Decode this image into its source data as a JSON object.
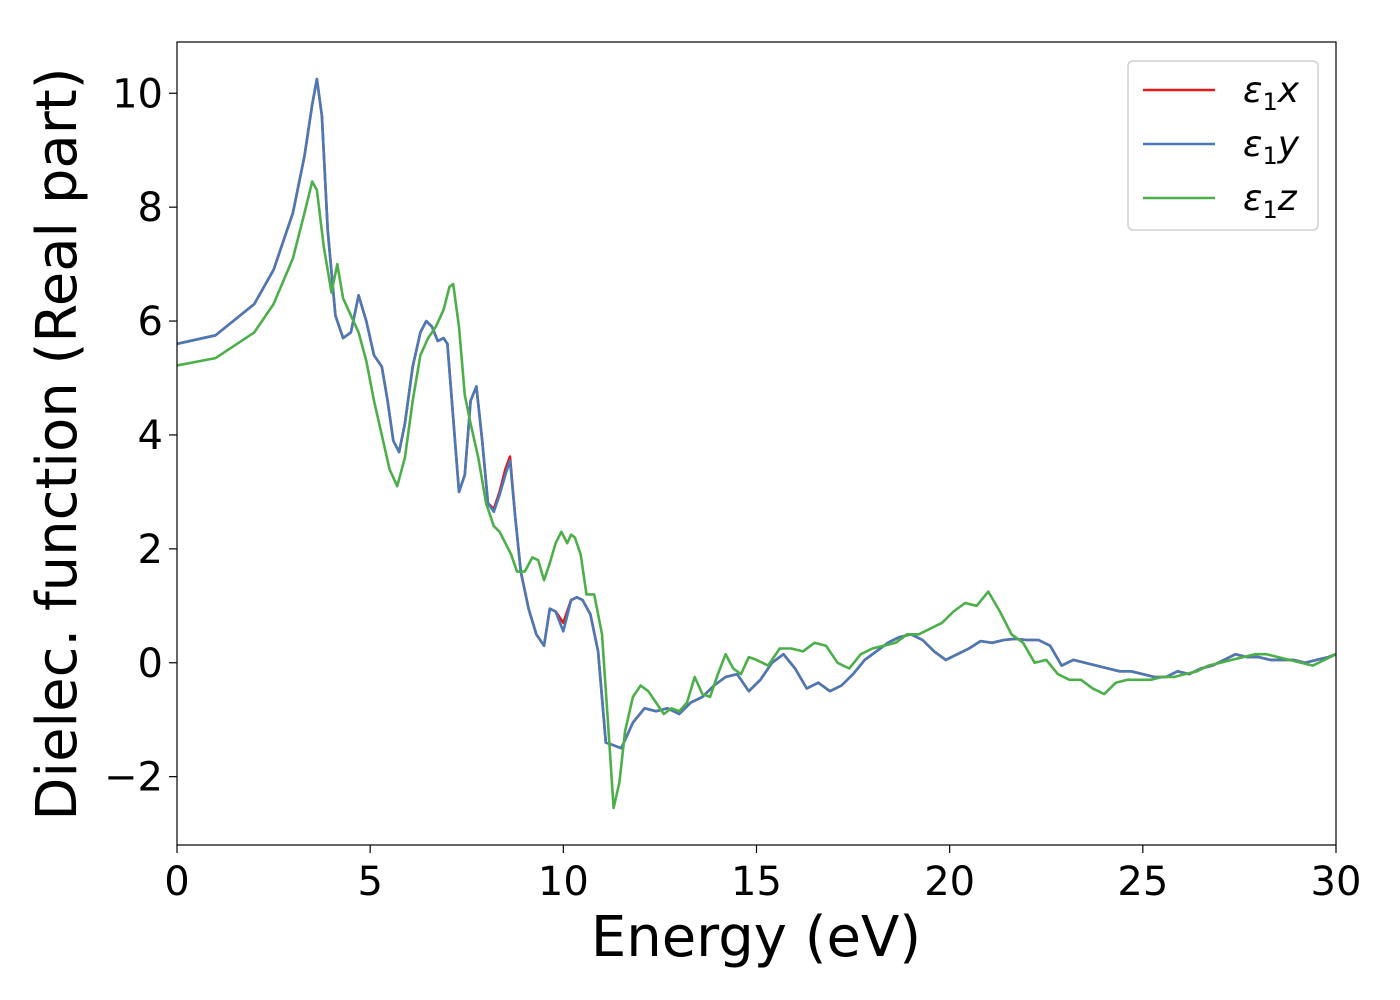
{
  "chart_data": {
    "type": "line",
    "xlabel": "Energy (eV)",
    "ylabel": "Dielec. function (Real part)",
    "xlim": [
      0,
      30
    ],
    "ylim": [
      -3.2,
      10.9
    ],
    "xticks": [
      0,
      5,
      10,
      15,
      20,
      25,
      30
    ],
    "yticks": [
      -2,
      0,
      2,
      4,
      6,
      8,
      10
    ],
    "ytick_labels": [
      "−2",
      "0",
      "2",
      "4",
      "6",
      "8",
      "10"
    ],
    "grid": false,
    "legend_position": "top-right",
    "series": [
      {
        "name": "ε1x",
        "symbol": "ε",
        "subscript": "1",
        "suffix": "x",
        "color": "#e41a1c",
        "x": [
          0,
          1,
          2,
          2.5,
          3,
          3.3,
          3.5,
          3.62,
          3.75,
          3.9,
          4.1,
          4.3,
          4.5,
          4.7,
          4.9,
          5.1,
          5.3,
          5.45,
          5.6,
          5.75,
          5.9,
          6.1,
          6.3,
          6.45,
          6.6,
          6.75,
          6.9,
          7.0,
          7.15,
          7.3,
          7.45,
          7.6,
          7.75,
          7.9,
          8.05,
          8.2,
          8.35,
          8.5,
          8.62,
          8.75,
          8.9,
          9.1,
          9.3,
          9.5,
          9.65,
          9.8,
          10.0,
          10.2,
          10.35,
          10.5,
          10.7,
          10.9,
          11.1,
          11.3,
          11.5,
          11.8,
          12.1,
          12.4,
          12.7,
          13.0,
          13.3,
          13.6,
          13.9,
          14.2,
          14.5,
          14.8,
          15.1,
          15.4,
          15.7,
          16.0,
          16.3,
          16.6,
          16.9,
          17.2,
          17.5,
          17.8,
          18.1,
          18.4,
          18.7,
          19.0,
          19.3,
          19.6,
          19.9,
          20.2,
          20.5,
          20.8,
          21.1,
          21.4,
          21.7,
          22.0,
          22.3,
          22.6,
          22.9,
          23.2,
          23.5,
          23.8,
          24.1,
          24.4,
          24.7,
          25.0,
          25.3,
          25.6,
          25.9,
          26.2,
          26.5,
          26.8,
          27.1,
          27.4,
          27.7,
          28.0,
          28.3,
          28.6,
          28.9,
          29.2,
          29.5,
          29.8,
          30.0
        ],
        "y": [
          5.6,
          5.75,
          6.3,
          6.9,
          7.9,
          8.9,
          9.8,
          10.25,
          9.6,
          7.6,
          6.1,
          5.7,
          5.8,
          6.45,
          6.0,
          5.4,
          5.2,
          4.6,
          3.9,
          3.7,
          4.2,
          5.2,
          5.8,
          6.0,
          5.9,
          5.65,
          5.7,
          5.6,
          4.3,
          3.0,
          3.3,
          4.6,
          4.85,
          3.9,
          2.8,
          2.7,
          3.0,
          3.4,
          3.62,
          2.6,
          1.6,
          0.95,
          0.5,
          0.3,
          0.95,
          0.9,
          0.7,
          1.1,
          1.15,
          1.1,
          0.85,
          0.2,
          -1.4,
          -1.45,
          -1.5,
          -1.05,
          -0.8,
          -0.85,
          -0.8,
          -0.9,
          -0.7,
          -0.6,
          -0.4,
          -0.25,
          -0.2,
          -0.5,
          -0.3,
          0.0,
          0.15,
          -0.1,
          -0.45,
          -0.35,
          -0.5,
          -0.4,
          -0.2,
          0.05,
          0.2,
          0.35,
          0.45,
          0.5,
          0.4,
          0.2,
          0.05,
          0.15,
          0.25,
          0.38,
          0.35,
          0.4,
          0.42,
          0.4,
          0.4,
          0.3,
          -0.05,
          0.05,
          0.0,
          -0.05,
          -0.1,
          -0.15,
          -0.15,
          -0.2,
          -0.25,
          -0.25,
          -0.15,
          -0.2,
          -0.1,
          -0.05,
          0.05,
          0.15,
          0.1,
          0.1,
          0.05,
          0.05,
          0.05,
          0.0,
          0.05,
          0.1,
          0.15
        ]
      },
      {
        "name": "ε1y",
        "symbol": "ε",
        "subscript": "1",
        "suffix": "y",
        "color": "#4a7ab5",
        "x": [
          0,
          1,
          2,
          2.5,
          3,
          3.3,
          3.5,
          3.62,
          3.75,
          3.9,
          4.1,
          4.3,
          4.5,
          4.7,
          4.9,
          5.1,
          5.3,
          5.45,
          5.6,
          5.75,
          5.9,
          6.1,
          6.3,
          6.45,
          6.6,
          6.75,
          6.9,
          7.0,
          7.15,
          7.3,
          7.45,
          7.6,
          7.75,
          7.9,
          8.05,
          8.2,
          8.35,
          8.5,
          8.62,
          8.75,
          8.9,
          9.1,
          9.3,
          9.5,
          9.65,
          9.8,
          10.0,
          10.2,
          10.35,
          10.5,
          10.7,
          10.9,
          11.1,
          11.3,
          11.5,
          11.8,
          12.1,
          12.4,
          12.7,
          13.0,
          13.3,
          13.6,
          13.9,
          14.2,
          14.5,
          14.8,
          15.1,
          15.4,
          15.7,
          16.0,
          16.3,
          16.6,
          16.9,
          17.2,
          17.5,
          17.8,
          18.1,
          18.4,
          18.7,
          19.0,
          19.3,
          19.6,
          19.9,
          20.2,
          20.5,
          20.8,
          21.1,
          21.4,
          21.7,
          22.0,
          22.3,
          22.6,
          22.9,
          23.2,
          23.5,
          23.8,
          24.1,
          24.4,
          24.7,
          25.0,
          25.3,
          25.6,
          25.9,
          26.2,
          26.5,
          26.8,
          27.1,
          27.4,
          27.7,
          28.0,
          28.3,
          28.6,
          28.9,
          29.2,
          29.5,
          29.8,
          30.0
        ],
        "y": [
          5.6,
          5.75,
          6.3,
          6.9,
          7.9,
          8.9,
          9.8,
          10.25,
          9.6,
          7.6,
          6.1,
          5.7,
          5.8,
          6.45,
          6.0,
          5.4,
          5.2,
          4.6,
          3.9,
          3.7,
          4.2,
          5.2,
          5.8,
          6.0,
          5.9,
          5.65,
          5.7,
          5.6,
          4.3,
          3.0,
          3.3,
          4.6,
          4.85,
          3.9,
          2.8,
          2.65,
          2.95,
          3.3,
          3.55,
          2.6,
          1.6,
          0.95,
          0.5,
          0.3,
          0.95,
          0.9,
          0.55,
          1.1,
          1.15,
          1.1,
          0.85,
          0.2,
          -1.4,
          -1.45,
          -1.5,
          -1.05,
          -0.8,
          -0.85,
          -0.8,
          -0.9,
          -0.7,
          -0.6,
          -0.4,
          -0.25,
          -0.2,
          -0.5,
          -0.3,
          0.0,
          0.15,
          -0.1,
          -0.45,
          -0.35,
          -0.5,
          -0.4,
          -0.2,
          0.05,
          0.2,
          0.35,
          0.45,
          0.5,
          0.4,
          0.2,
          0.05,
          0.15,
          0.25,
          0.38,
          0.35,
          0.4,
          0.42,
          0.4,
          0.4,
          0.3,
          -0.05,
          0.05,
          0.0,
          -0.05,
          -0.1,
          -0.15,
          -0.15,
          -0.2,
          -0.25,
          -0.25,
          -0.15,
          -0.2,
          -0.1,
          -0.05,
          0.05,
          0.15,
          0.1,
          0.1,
          0.05,
          0.05,
          0.05,
          0.0,
          0.05,
          0.1,
          0.15
        ]
      },
      {
        "name": "ε1z",
        "symbol": "ε",
        "subscript": "1",
        "suffix": "z",
        "color": "#4daf4a",
        "x": [
          0,
          1,
          2,
          2.5,
          3,
          3.3,
          3.5,
          3.62,
          3.8,
          4.0,
          4.15,
          4.3,
          4.5,
          4.7,
          4.9,
          5.1,
          5.3,
          5.5,
          5.7,
          5.9,
          6.1,
          6.3,
          6.5,
          6.7,
          6.9,
          7.05,
          7.15,
          7.3,
          7.45,
          7.6,
          7.8,
          8.0,
          8.2,
          8.35,
          8.5,
          8.65,
          8.8,
          9.0,
          9.2,
          9.35,
          9.5,
          9.65,
          9.8,
          9.95,
          10.1,
          10.2,
          10.3,
          10.45,
          10.6,
          10.8,
          11.0,
          11.15,
          11.3,
          11.45,
          11.6,
          11.8,
          12.0,
          12.2,
          12.4,
          12.6,
          12.8,
          13.0,
          13.2,
          13.4,
          13.6,
          13.8,
          14.0,
          14.2,
          14.4,
          14.6,
          14.8,
          15.0,
          15.3,
          15.6,
          15.9,
          16.2,
          16.5,
          16.8,
          17.1,
          17.4,
          17.7,
          18.0,
          18.3,
          18.6,
          18.9,
          19.2,
          19.5,
          19.8,
          20.1,
          20.4,
          20.7,
          21.0,
          21.3,
          21.6,
          21.9,
          22.2,
          22.5,
          22.8,
          23.1,
          23.4,
          23.7,
          24.0,
          24.3,
          24.6,
          24.9,
          25.2,
          25.5,
          25.8,
          26.1,
          26.4,
          26.7,
          27.0,
          27.3,
          27.6,
          27.9,
          28.2,
          28.5,
          28.8,
          29.1,
          29.4,
          29.7,
          30.0
        ],
        "y": [
          5.22,
          5.35,
          5.8,
          6.3,
          7.1,
          7.9,
          8.45,
          8.3,
          7.3,
          6.5,
          7.0,
          6.4,
          6.1,
          5.8,
          5.3,
          4.6,
          4.0,
          3.4,
          3.1,
          3.6,
          4.6,
          5.4,
          5.7,
          5.9,
          6.2,
          6.6,
          6.65,
          5.9,
          4.7,
          4.2,
          3.6,
          2.8,
          2.4,
          2.3,
          2.1,
          1.9,
          1.6,
          1.6,
          1.85,
          1.8,
          1.45,
          1.75,
          2.1,
          2.3,
          2.1,
          2.25,
          2.2,
          1.9,
          1.2,
          1.2,
          0.5,
          -1.0,
          -2.55,
          -2.1,
          -1.2,
          -0.6,
          -0.4,
          -0.5,
          -0.7,
          -0.9,
          -0.8,
          -0.85,
          -0.7,
          -0.25,
          -0.55,
          -0.6,
          -0.2,
          0.15,
          -0.1,
          -0.2,
          0.1,
          0.05,
          -0.05,
          0.25,
          0.25,
          0.2,
          0.35,
          0.3,
          0.0,
          -0.1,
          0.15,
          0.25,
          0.3,
          0.35,
          0.5,
          0.5,
          0.6,
          0.7,
          0.9,
          1.05,
          1.0,
          1.25,
          0.9,
          0.5,
          0.35,
          0.0,
          0.05,
          -0.2,
          -0.3,
          -0.3,
          -0.45,
          -0.55,
          -0.35,
          -0.3,
          -0.3,
          -0.3,
          -0.25,
          -0.25,
          -0.2,
          -0.15,
          -0.05,
          0.0,
          0.05,
          0.1,
          0.15,
          0.15,
          0.1,
          0.05,
          0.0,
          -0.05,
          0.05,
          0.15
        ]
      }
    ]
  }
}
